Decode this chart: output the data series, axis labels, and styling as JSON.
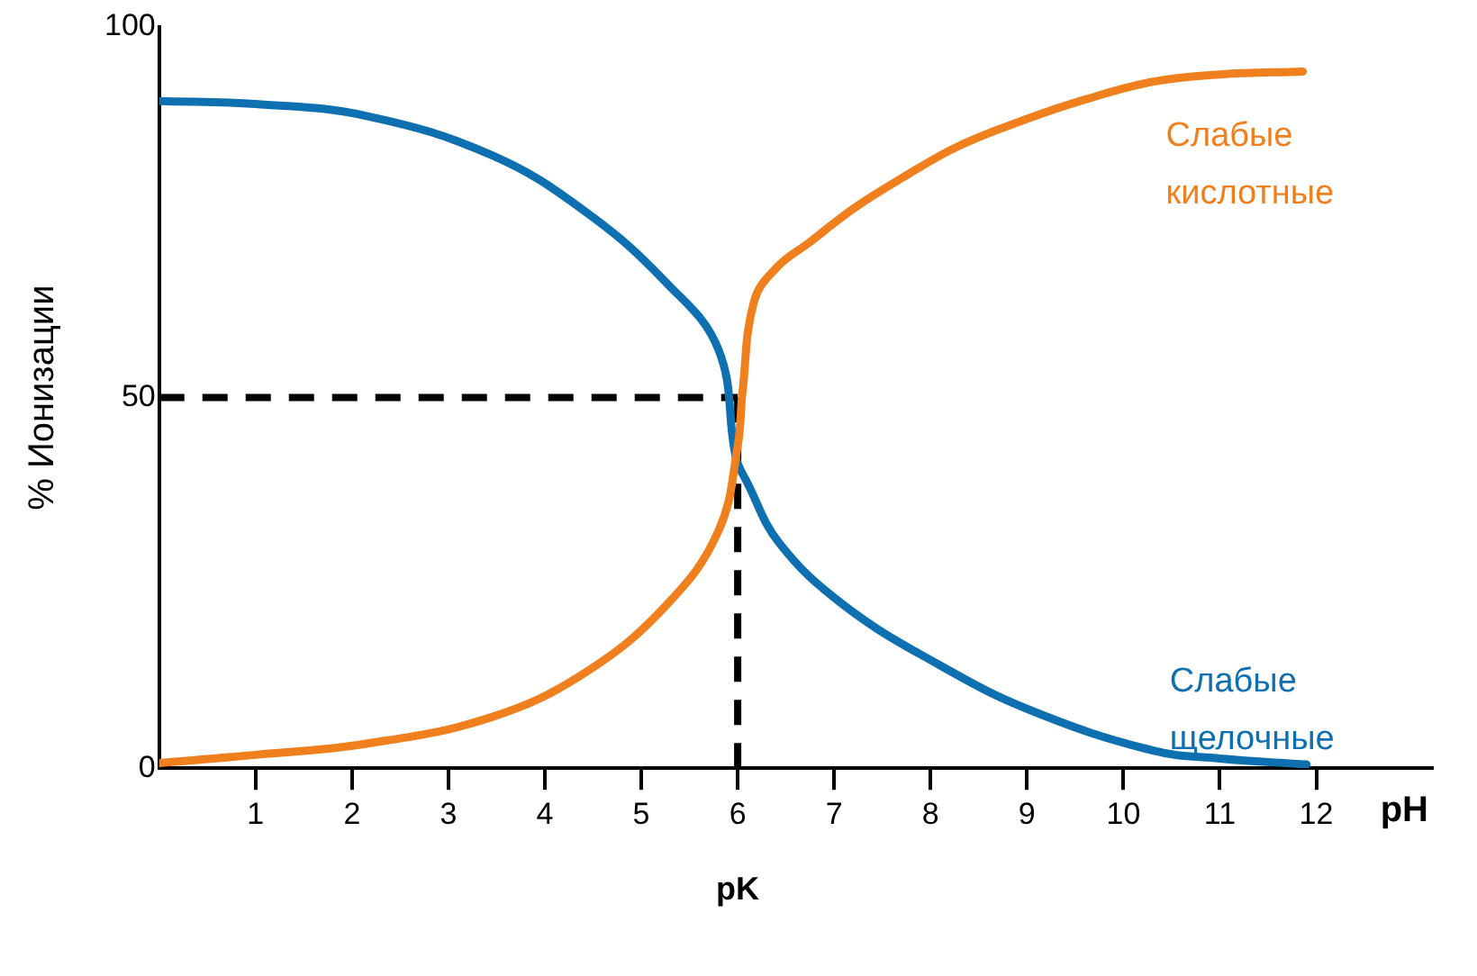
{
  "chart_data": {
    "type": "line",
    "xlabel": "pH",
    "ylabel": "% Ионизации",
    "xlim": [
      0,
      13.2
    ],
    "xticks": [
      1,
      2,
      3,
      4,
      5,
      6,
      7,
      8,
      9,
      10,
      11,
      12
    ],
    "ylim": [
      0,
      100
    ],
    "yticks": [
      0,
      50,
      100
    ],
    "grid": false,
    "legend": false,
    "marker": "none",
    "line_style": "solid",
    "series": [
      {
        "name": "Слабые кислотные",
        "color": "#f07f1e",
        "x": [
          0,
          1,
          2.15,
          3.45,
          4.43,
          5.26,
          5.8,
          6.0,
          6.05,
          6.17,
          6.4,
          6.75,
          7.2,
          7.7,
          8.3,
          9.0,
          9.6,
          10.3,
          11.0,
          11.86
        ],
        "values": [
          0.7,
          1.8,
          3.3,
          6.9,
          13,
          22,
          32,
          43.5,
          50.8,
          63,
          67.5,
          71,
          75.5,
          79.6,
          84,
          87.6,
          90.2,
          92.6,
          93.6,
          94
        ]
      },
      {
        "name": "Слабые щелочные",
        "color": "#0e6fb1",
        "x": [
          0,
          1,
          2.15,
          3.45,
          4.43,
          5.26,
          5.8,
          5.98,
          6.1,
          6.43,
          7.1,
          8.08,
          9.04,
          10.3,
          11.0,
          11.9
        ],
        "values": [
          90,
          89.6,
          88,
          82.7,
          75,
          65.5,
          56.5,
          42,
          38.5,
          30.4,
          22,
          14,
          7.8,
          2.4,
          1.3,
          0.5
        ]
      }
    ],
    "ref_lines": [
      {
        "axis": "y",
        "value": 50,
        "color": "#000000",
        "line_style": "dashed"
      },
      {
        "axis": "x",
        "value": 6,
        "color": "#000000",
        "line_style": "dashed"
      }
    ],
    "annotations": [
      "pK"
    ]
  }
}
